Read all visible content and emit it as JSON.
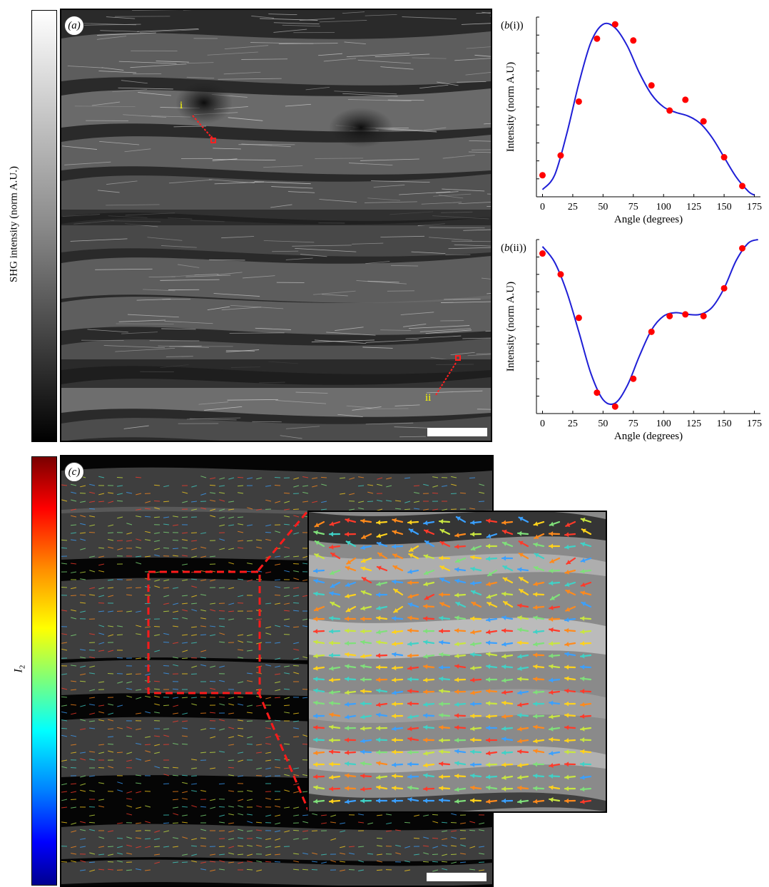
{
  "colorbar_a": {
    "label": "SHG intensity (norm A.U.)"
  },
  "colorbar_c": {
    "label_main": "I",
    "label_sub": "2"
  },
  "panel_a": {
    "label": "(a)",
    "roi_i": "i",
    "roi_ii": "ii"
  },
  "panel_c": {
    "label": "(c)"
  },
  "panel_b_i": {
    "label_prefix": "(b",
    "label_roman": "(i)",
    "label_suffix": ")"
  },
  "panel_b_ii": {
    "label_prefix": "(b",
    "label_roman": "(ii)",
    "label_suffix": ")"
  },
  "colors": {
    "fit_line": "#1f1fd6",
    "data_points": "#ff0000",
    "roi_marker": "#ff2020",
    "roi_text": "#ffff00"
  },
  "chart_data": [
    {
      "type": "scatter",
      "title": "(b(i))",
      "xlabel": "Angle (degrees)",
      "ylabel": "Intensity (norm A.U)",
      "xlim": [
        -5,
        180
      ],
      "ylim": [
        0,
        1
      ],
      "x_ticks": [
        "0",
        "25",
        "50",
        "75",
        "100",
        "125",
        "150",
        "175"
      ],
      "series": [
        {
          "kind": "points",
          "x": [
            0,
            15,
            30,
            45,
            60,
            75,
            90,
            105,
            118,
            133,
            150,
            165
          ],
          "y": [
            0.12,
            0.23,
            0.53,
            0.88,
            0.96,
            0.87,
            0.62,
            0.48,
            0.54,
            0.42,
            0.22,
            0.06
          ]
        },
        {
          "kind": "fit",
          "x": [
            0,
            10,
            20,
            30,
            40,
            50,
            60,
            70,
            80,
            90,
            100,
            110,
            120,
            130,
            140,
            150,
            160,
            170,
            175
          ],
          "y": [
            0.04,
            0.12,
            0.35,
            0.63,
            0.86,
            0.96,
            0.94,
            0.84,
            0.69,
            0.57,
            0.5,
            0.47,
            0.45,
            0.41,
            0.33,
            0.22,
            0.11,
            0.03,
            0.01
          ]
        }
      ]
    },
    {
      "type": "scatter",
      "title": "(b(ii))",
      "xlabel": "Angle (degrees)",
      "ylabel": "Intensity (norm A.U)",
      "xlim": [
        -5,
        180
      ],
      "ylim": [
        0,
        1
      ],
      "x_ticks": [
        "0",
        "25",
        "50",
        "75",
        "100",
        "125",
        "150",
        "175"
      ],
      "series": [
        {
          "kind": "points",
          "x": [
            0,
            15,
            30,
            45,
            60,
            75,
            90,
            105,
            118,
            133,
            150,
            165
          ],
          "y": [
            0.92,
            0.8,
            0.55,
            0.12,
            0.04,
            0.2,
            0.47,
            0.56,
            0.57,
            0.56,
            0.72,
            0.95
          ]
        },
        {
          "kind": "fit",
          "x": [
            0,
            10,
            20,
            30,
            40,
            50,
            60,
            70,
            80,
            90,
            100,
            110,
            120,
            130,
            140,
            150,
            160,
            170,
            178
          ],
          "y": [
            0.96,
            0.87,
            0.7,
            0.47,
            0.23,
            0.08,
            0.06,
            0.16,
            0.33,
            0.48,
            0.56,
            0.58,
            0.57,
            0.57,
            0.61,
            0.72,
            0.88,
            0.98,
            1.0
          ]
        }
      ]
    }
  ]
}
